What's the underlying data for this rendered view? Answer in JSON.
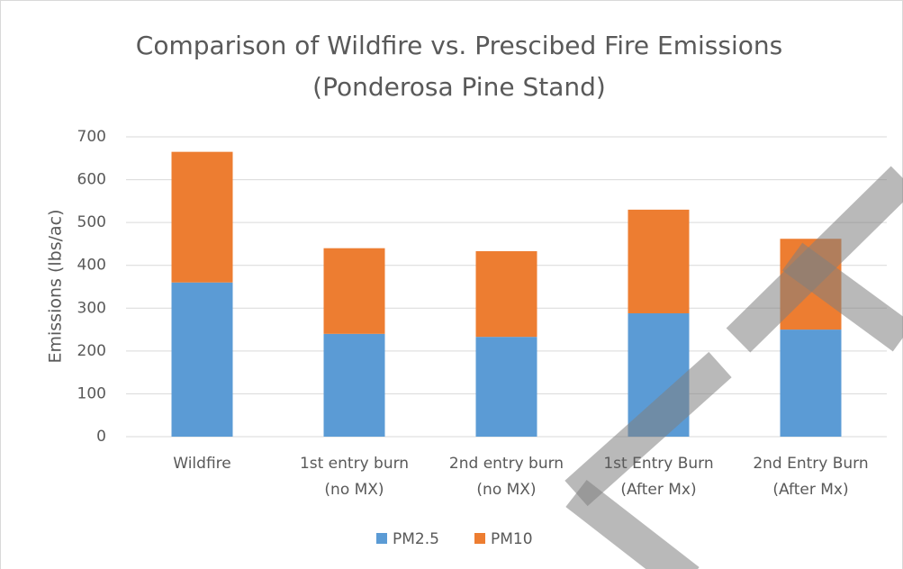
{
  "chart_data": {
    "type": "stacked_bar",
    "title": "Comparison of Wildfire vs. Prescibed Fire Emissions\n(Ponderosa Pine Stand)",
    "y_label": "Emissions (lbs/ac)",
    "categories": [
      "Wildfire",
      "1st entry burn\n(no MX)",
      "2nd entry burn\n(no MX)",
      "1st Entry Burn\n(After Mx)",
      "2nd Entry Burn\n(After Mx)"
    ],
    "series": [
      {
        "name": "PM2.5",
        "color": "#5b9bd5",
        "values": [
          360,
          240,
          233,
          288,
          250
        ]
      },
      {
        "name": "PM10",
        "color": "#ed7d31",
        "values": [
          305,
          200,
          200,
          242,
          212
        ]
      }
    ],
    "ylim": [
      0,
      700
    ],
    "yticks": [
      0,
      100,
      200,
      300,
      400,
      500,
      600,
      700
    ],
    "grid": true,
    "legend": "bottom"
  }
}
